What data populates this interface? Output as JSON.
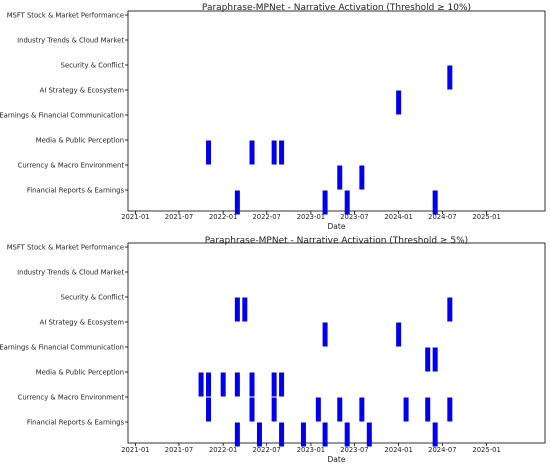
{
  "chart_data": [
    {
      "type": "scatter",
      "title": "Paraphrase-MPNet - Narrative Activation (Threshold ≥ 10%)",
      "xlabel": "Date",
      "ylabel": "",
      "categories": [
        "MSFT Stock & Market Performance",
        "Industry Trends & Cloud Market",
        "Security & Conflict",
        "AI Strategy & Ecosystem",
        "Earnings & Financial Communication",
        "Media & Public Perception",
        "Currency & Macro Environment",
        "Financial Reports & Earnings"
      ],
      "x_ticks": [
        "2021-01",
        "2021-07",
        "2022-01",
        "2022-07",
        "2023-01",
        "2023-07",
        "2024-01",
        "2024-07",
        "2025-01"
      ],
      "xlim": [
        "2020-12-01",
        "2025-09-01"
      ],
      "bar_color": "#0000ee",
      "events": [
        {
          "category": "Security & Conflict",
          "dates": [
            "2024-08-01"
          ]
        },
        {
          "category": "AI Strategy & Ecosystem",
          "dates": [
            "2024-01-01"
          ]
        },
        {
          "category": "Media & Public Perception",
          "dates": [
            "2021-11-01",
            "2022-05-01",
            "2022-08-01",
            "2022-09-01"
          ]
        },
        {
          "category": "Currency & Macro Environment",
          "dates": [
            "2023-05-01",
            "2023-08-01"
          ]
        },
        {
          "category": "Financial Reports & Earnings",
          "dates": [
            "2022-03-01",
            "2023-03-01",
            "2023-06-01",
            "2024-06-01"
          ]
        }
      ]
    },
    {
      "type": "scatter",
      "title": "Paraphrase-MPNet - Narrative Activation (Threshold ≥ 5%)",
      "xlabel": "Date",
      "ylabel": "",
      "categories": [
        "MSFT Stock & Market Performance",
        "Industry Trends & Cloud Market",
        "Security & Conflict",
        "AI Strategy & Ecosystem",
        "Earnings & Financial Communication",
        "Media & Public Perception",
        "Currency & Macro Environment",
        "Financial Reports & Earnings"
      ],
      "x_ticks": [
        "2021-01",
        "2021-07",
        "2022-01",
        "2022-07",
        "2023-01",
        "2023-07",
        "2024-01",
        "2024-07",
        "2025-01"
      ],
      "xlim": [
        "2020-12-01",
        "2025-09-01"
      ],
      "bar_color": "#0000ee",
      "events": [
        {
          "category": "Security & Conflict",
          "dates": [
            "2022-03-01",
            "2022-04-01",
            "2024-08-01"
          ]
        },
        {
          "category": "AI Strategy & Ecosystem",
          "dates": [
            "2023-03-01",
            "2024-01-01"
          ]
        },
        {
          "category": "Earnings & Financial Communication",
          "dates": [
            "2024-05-01",
            "2024-06-01"
          ]
        },
        {
          "category": "Media & Public Perception",
          "dates": [
            "2021-10-01",
            "2021-11-01",
            "2022-01-01",
            "2022-03-01",
            "2022-05-01",
            "2022-08-01",
            "2022-09-01"
          ]
        },
        {
          "category": "Currency & Macro Environment",
          "dates": [
            "2021-11-01",
            "2022-05-01",
            "2022-08-01",
            "2023-02-01",
            "2023-05-01",
            "2023-08-01",
            "2024-02-01",
            "2024-05-01",
            "2024-08-01"
          ]
        },
        {
          "category": "Financial Reports & Earnings",
          "dates": [
            "2022-03-01",
            "2022-06-01",
            "2022-09-01",
            "2022-12-01",
            "2023-03-01",
            "2023-06-01",
            "2023-09-01",
            "2024-06-01"
          ]
        }
      ]
    }
  ]
}
